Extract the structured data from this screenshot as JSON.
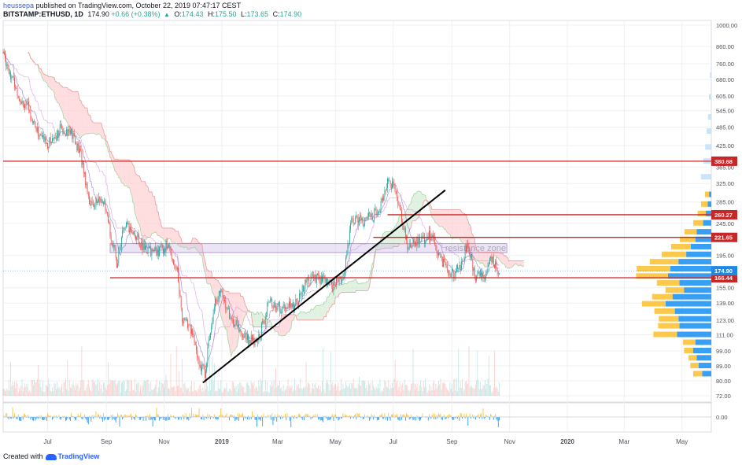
{
  "header": {
    "author": "heussepa",
    "published_text": "published on TradingView.com, October 22, 2019 07:47:17 CEST",
    "symbol": "BITSTAMP:ETHUSD, 1D",
    "last": "174.90",
    "change": "+0.66 (+0.38%)",
    "open_label": "O:",
    "open": "174.43",
    "high_label": "H:",
    "high": "175.50",
    "low_label": "L:",
    "low": "173.65",
    "close_label": "C:",
    "close": "174.90"
  },
  "footer": {
    "created_with": "Created with",
    "brand": "TradingView"
  },
  "colors": {
    "up": "#26a69a",
    "down": "#ef5350",
    "cloud_red": "#ffcdd2",
    "cloud_green": "#c8e6c9",
    "level": "#c62828",
    "trend": "#000000",
    "vol_up": "#2196f3",
    "vol_down": "#fbc02d",
    "zone": "#d1c4e9",
    "last_price": "#1e88e5",
    "base_line": "#ef9a9a",
    "conv_line": "#9575cd"
  },
  "chart_data": {
    "type": "candlestick",
    "symbol": "BITSTAMP:ETHUSD",
    "interval": "1D",
    "y_scale": "log",
    "ylim": [
      72,
      1000
    ],
    "y_ticks": [
      "1000.00",
      "860.00",
      "760.00",
      "680.00",
      "605.00",
      "545.00",
      "485.00",
      "425.00",
      "365.00",
      "325.00",
      "285.00",
      "245.00",
      "195.00",
      "155.00",
      "139.00",
      "123.00",
      "111.00",
      "99.00",
      "89.00",
      "80.00",
      "72.00"
    ],
    "x_ticks": [
      "Jul",
      "Sep",
      "Nov",
      "2019",
      "Mar",
      "May",
      "Jul",
      "Sep",
      "Nov",
      "2020",
      "Mar",
      "May"
    ],
    "x_range": [
      "2018-05-15",
      "2020-06-01"
    ],
    "horizontal_levels": [
      {
        "label": "380.68",
        "value": 380.68
      },
      {
        "label": "260.27",
        "value": 260.27
      },
      {
        "label": "221.65",
        "value": 221.65
      },
      {
        "label": "166.44",
        "value": 166.44
      }
    ],
    "last_price": {
      "label": "174.90",
      "value": 174.9
    },
    "annotation": "resistance zone",
    "zone": {
      "low": 199,
      "high": 212
    },
    "trendline": [
      {
        "date": "2018-12-12",
        "value": 79
      },
      {
        "date": "2019-08-25",
        "value": 310
      }
    ],
    "grid": true,
    "price_path": [
      {
        "date": "2018-05-15",
        "value": 820
      },
      {
        "date": "2018-06-01",
        "value": 600
      },
      {
        "date": "2018-06-10",
        "value": 560
      },
      {
        "date": "2018-06-20",
        "value": 470
      },
      {
        "date": "2018-07-01",
        "value": 430
      },
      {
        "date": "2018-07-15",
        "value": 480
      },
      {
        "date": "2018-07-25",
        "value": 470
      },
      {
        "date": "2018-08-05",
        "value": 400
      },
      {
        "date": "2018-08-15",
        "value": 280
      },
      {
        "date": "2018-08-28",
        "value": 290
      },
      {
        "date": "2018-09-05",
        "value": 230
      },
      {
        "date": "2018-09-12",
        "value": 185
      },
      {
        "date": "2018-09-20",
        "value": 240
      },
      {
        "date": "2018-09-30",
        "value": 230
      },
      {
        "date": "2018-10-10",
        "value": 205
      },
      {
        "date": "2018-10-25",
        "value": 200
      },
      {
        "date": "2018-11-05",
        "value": 210
      },
      {
        "date": "2018-11-15",
        "value": 175
      },
      {
        "date": "2018-11-20",
        "value": 125
      },
      {
        "date": "2018-11-30",
        "value": 115
      },
      {
        "date": "2018-12-07",
        "value": 92
      },
      {
        "date": "2018-12-14",
        "value": 85
      },
      {
        "date": "2018-12-24",
        "value": 140
      },
      {
        "date": "2019-01-01",
        "value": 150
      },
      {
        "date": "2019-01-10",
        "value": 125
      },
      {
        "date": "2019-01-25",
        "value": 110
      },
      {
        "date": "2019-02-07",
        "value": 104
      },
      {
        "date": "2019-02-20",
        "value": 140
      },
      {
        "date": "2019-03-05",
        "value": 133
      },
      {
        "date": "2019-03-20",
        "value": 138
      },
      {
        "date": "2019-04-02",
        "value": 165
      },
      {
        "date": "2019-04-15",
        "value": 165
      },
      {
        "date": "2019-04-28",
        "value": 157
      },
      {
        "date": "2019-05-10",
        "value": 172
      },
      {
        "date": "2019-05-18",
        "value": 250
      },
      {
        "date": "2019-06-01",
        "value": 250
      },
      {
        "date": "2019-06-15",
        "value": 265
      },
      {
        "date": "2019-06-26",
        "value": 340
      },
      {
        "date": "2019-07-05",
        "value": 300
      },
      {
        "date": "2019-07-16",
        "value": 210
      },
      {
        "date": "2019-08-01",
        "value": 220
      },
      {
        "date": "2019-08-10",
        "value": 225
      },
      {
        "date": "2019-08-20",
        "value": 190
      },
      {
        "date": "2019-09-01",
        "value": 172
      },
      {
        "date": "2019-09-10",
        "value": 178
      },
      {
        "date": "2019-09-18",
        "value": 215
      },
      {
        "date": "2019-09-25",
        "value": 166
      },
      {
        "date": "2019-10-05",
        "value": 172
      },
      {
        "date": "2019-10-13",
        "value": 190
      },
      {
        "date": "2019-10-21",
        "value": 174.9
      }
    ],
    "volume_profile": [
      {
        "price": 300,
        "up": 0.1,
        "down": 0.05
      },
      {
        "price": 280,
        "up": 0.16,
        "down": 0.08
      },
      {
        "price": 262,
        "up": 0.2,
        "down": 0.12
      },
      {
        "price": 245,
        "up": 0.24,
        "down": 0.18
      },
      {
        "price": 230,
        "up": 0.3,
        "down": 0.32
      },
      {
        "price": 218,
        "up": 0.38,
        "down": 0.35
      },
      {
        "price": 207,
        "up": 0.48,
        "down": 0.45
      },
      {
        "price": 196,
        "up": 0.6,
        "down": 0.55
      },
      {
        "price": 186,
        "up": 0.7,
        "down": 0.72
      },
      {
        "price": 177,
        "up": 0.82,
        "down": 0.9
      },
      {
        "price": 168,
        "up": 0.78,
        "down": 0.95
      },
      {
        "price": 160,
        "up": 0.55,
        "down": 0.7
      },
      {
        "price": 152,
        "up": 0.45,
        "down": 0.6
      },
      {
        "price": 145,
        "up": 0.5,
        "down": 0.85
      },
      {
        "price": 138,
        "up": 0.58,
        "down": 1.0
      },
      {
        "price": 131,
        "up": 0.5,
        "down": 0.8
      },
      {
        "price": 124,
        "up": 0.48,
        "down": 0.72
      },
      {
        "price": 118,
        "up": 0.52,
        "down": 0.7
      },
      {
        "price": 111,
        "up": 0.58,
        "down": 0.75
      },
      {
        "price": 105,
        "up": 0.3,
        "down": 0.35
      },
      {
        "price": 99,
        "up": 0.22,
        "down": 0.4
      },
      {
        "price": 94,
        "up": 0.2,
        "down": 0.32
      },
      {
        "price": 89,
        "up": 0.2,
        "down": 0.28
      },
      {
        "price": 84,
        "up": 0.22,
        "down": 0.2
      }
    ],
    "top_profile": [
      {
        "price": 700,
        "value": 0.03
      },
      {
        "price": 600,
        "value": 0.05
      },
      {
        "price": 520,
        "value": 0.07
      },
      {
        "price": 470,
        "value": 0.1
      },
      {
        "price": 420,
        "value": 0.13
      },
      {
        "price": 380,
        "value": 0.17
      },
      {
        "price": 340,
        "value": 0.22
      }
    ],
    "indicator": {
      "y_tick": "0.00"
    }
  }
}
